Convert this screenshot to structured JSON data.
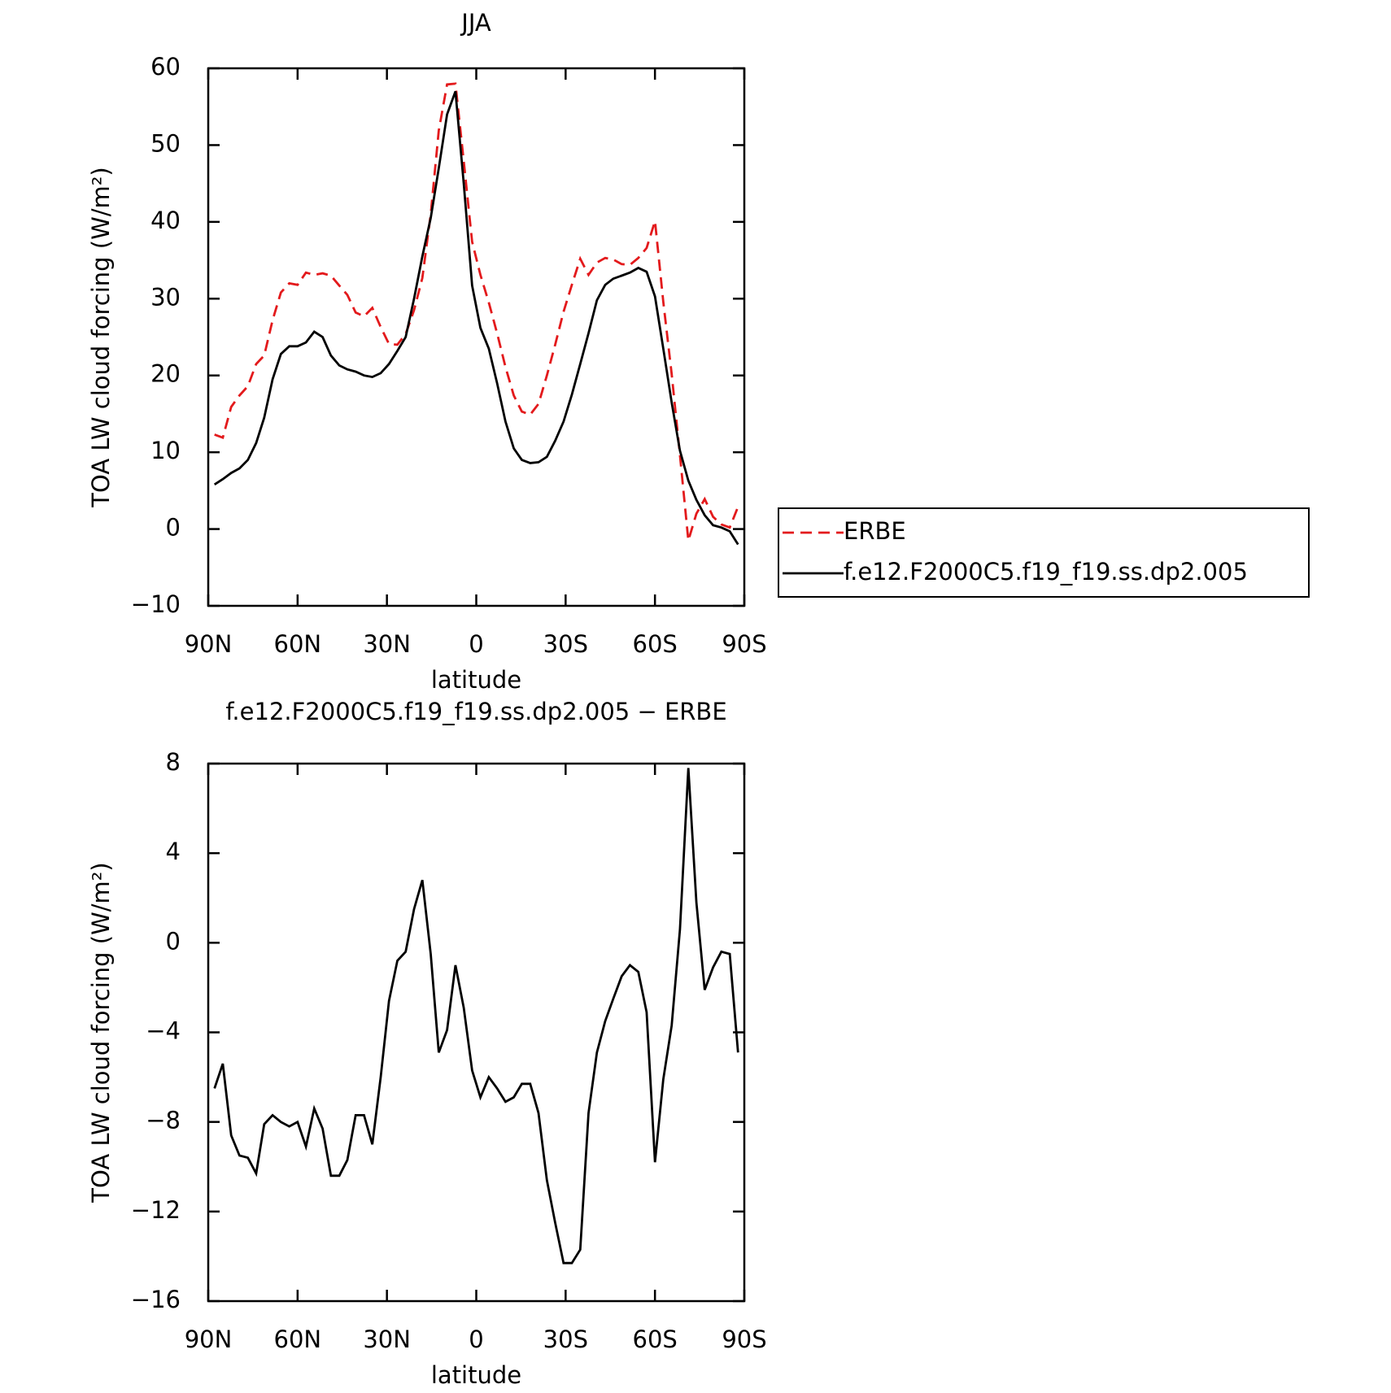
{
  "chart_data": [
    {
      "type": "line",
      "title": "JJA",
      "xlabel": "latitude",
      "ylabel": "TOA LW cloud forcing (W/m²)",
      "x": [
        87.9,
        85.1,
        82.3,
        79.5,
        76.7,
        73.9,
        71.2,
        68.4,
        65.6,
        62.8,
        60.0,
        57.2,
        54.4,
        51.6,
        48.8,
        46.0,
        43.3,
        40.5,
        37.7,
        34.9,
        32.1,
        29.3,
        26.5,
        23.7,
        20.9,
        18.1,
        15.3,
        12.6,
        9.8,
        7.0,
        4.2,
        1.4,
        -1.4,
        -4.2,
        -7.0,
        -9.8,
        -12.6,
        -15.3,
        -18.1,
        -20.9,
        -23.7,
        -26.5,
        -29.3,
        -32.1,
        -34.9,
        -37.7,
        -40.5,
        -43.3,
        -46.0,
        -48.8,
        -51.6,
        -54.4,
        -57.2,
        -60.0,
        -62.8,
        -65.6,
        -68.4,
        -71.2,
        -73.9,
        -76.7,
        -79.5,
        -82.3,
        -85.1,
        -87.9
      ],
      "series": [
        {
          "name": "ERBE",
          "color": "#e31a1c",
          "dashed": true,
          "values": [
            12.3,
            11.9,
            15.9,
            17.4,
            18.6,
            21.5,
            22.6,
            27.2,
            30.8,
            32.0,
            31.8,
            33.4,
            33.1,
            33.3,
            33.0,
            31.7,
            30.5,
            28.2,
            27.7,
            28.8,
            26.3,
            24.1,
            24.0,
            25.4,
            28.5,
            32.7,
            41.0,
            51.9,
            57.9,
            58.0,
            47.9,
            37.4,
            33.1,
            29.5,
            25.5,
            21.1,
            17.4,
            15.3,
            14.9,
            16.3,
            20.0,
            24.0,
            28.3,
            31.8,
            35.2,
            33.1,
            34.7,
            35.3,
            35.1,
            34.5,
            34.4,
            35.3,
            36.6,
            40.1,
            29.6,
            20.2,
            9.6,
            -1.5,
            2.0,
            3.9,
            1.6,
            0.6,
            0.2,
            2.9
          ]
        },
        {
          "name": "f.e12.F2000C5.f19_f19.ss.dp2.005",
          "color": "#000000",
          "dashed": false,
          "values": [
            5.8,
            6.5,
            7.3,
            7.9,
            9.0,
            11.2,
            14.5,
            19.5,
            22.8,
            23.8,
            23.8,
            24.3,
            25.7,
            25.0,
            22.6,
            21.3,
            20.8,
            20.5,
            20.0,
            19.8,
            20.3,
            21.5,
            23.2,
            25.0,
            30.0,
            35.5,
            40.5,
            47.0,
            54.0,
            57.0,
            45.0,
            31.7,
            26.2,
            23.5,
            19.0,
            14.0,
            10.5,
            9.0,
            8.6,
            8.7,
            9.4,
            11.5,
            14.0,
            17.5,
            21.5,
            25.5,
            29.8,
            31.8,
            32.6,
            33.0,
            33.4,
            34.0,
            33.5,
            30.3,
            23.5,
            16.5,
            10.2,
            6.3,
            3.8,
            1.8,
            0.5,
            0.2,
            -0.3,
            -2.0
          ]
        }
      ],
      "xlim": [
        90,
        -90
      ],
      "xticks": [
        {
          "value": 90,
          "label": "90N"
        },
        {
          "value": 60,
          "label": "60N"
        },
        {
          "value": 30,
          "label": "30N"
        },
        0,
        {
          "value": -30,
          "label": "30S"
        },
        {
          "value": -60,
          "label": "60S"
        },
        {
          "value": -90,
          "label": "90S"
        }
      ],
      "ylim": [
        -10,
        60
      ],
      "yticks": [
        {
          "value": -10,
          "label": "−10"
        },
        0,
        10,
        20,
        30,
        40,
        50,
        60
      ],
      "legend": "right"
    },
    {
      "type": "line",
      "title": "f.e12.F2000C5.f19_f19.ss.dp2.005 − ERBE",
      "xlabel": "latitude",
      "ylabel": "TOA LW cloud forcing (W/m²)",
      "x": [
        87.9,
        85.1,
        82.3,
        79.5,
        76.7,
        73.9,
        71.2,
        68.4,
        65.6,
        62.8,
        60.0,
        57.2,
        54.4,
        51.6,
        48.8,
        46.0,
        43.3,
        40.5,
        37.7,
        34.9,
        32.1,
        29.3,
        26.5,
        23.7,
        20.9,
        18.1,
        15.3,
        12.6,
        9.8,
        7.0,
        4.2,
        1.4,
        -1.4,
        -4.2,
        -7.0,
        -9.8,
        -12.6,
        -15.3,
        -18.1,
        -20.9,
        -23.7,
        -26.5,
        -29.3,
        -32.1,
        -34.9,
        -37.7,
        -40.5,
        -43.3,
        -46.0,
        -48.8,
        -51.6,
        -54.4,
        -57.2,
        -60.0,
        -62.8,
        -65.6,
        -68.4,
        -71.2,
        -73.9,
        -76.7,
        -79.5,
        -82.3,
        -85.1,
        -87.9
      ],
      "series": [
        {
          "color": "#000000",
          "dashed": false,
          "values": [
            -6.5,
            -5.4,
            -8.6,
            -9.5,
            -9.6,
            -10.3,
            -8.1,
            -7.7,
            -8.0,
            -8.2,
            -8.0,
            -9.1,
            -7.4,
            -8.3,
            -10.4,
            -10.4,
            -9.7,
            -7.7,
            -7.7,
            -9.0,
            -6.0,
            -2.6,
            -0.8,
            -0.4,
            1.5,
            2.8,
            -0.5,
            -4.9,
            -3.9,
            -1.0,
            -2.9,
            -5.7,
            -6.9,
            -6.0,
            -6.5,
            -7.1,
            -6.9,
            -6.3,
            -6.3,
            -7.6,
            -10.6,
            -12.5,
            -14.3,
            -14.3,
            -13.7,
            -7.6,
            -4.9,
            -3.5,
            -2.5,
            -1.5,
            -1.0,
            -1.3,
            -3.1,
            -9.8,
            -6.1,
            -3.7,
            0.6,
            7.8,
            1.8,
            -2.1,
            -1.1,
            -0.4,
            -0.5,
            -4.9
          ]
        }
      ],
      "xlim": [
        90,
        -90
      ],
      "xticks": [
        {
          "value": 90,
          "label": "90N"
        },
        {
          "value": 60,
          "label": "60N"
        },
        {
          "value": 30,
          "label": "30N"
        },
        0,
        {
          "value": -30,
          "label": "30S"
        },
        {
          "value": -60,
          "label": "60S"
        },
        {
          "value": -90,
          "label": "90S"
        }
      ],
      "ylim": [
        -16,
        8
      ],
      "yticks": [
        {
          "value": -16,
          "label": "−16"
        },
        {
          "value": -12,
          "label": "−12"
        },
        {
          "value": -8,
          "label": "−8"
        },
        {
          "value": -4,
          "label": "−4"
        },
        0,
        4,
        8
      ]
    }
  ]
}
